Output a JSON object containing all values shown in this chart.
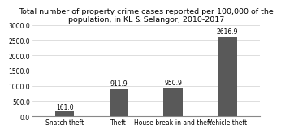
{
  "title": "Total number of property crime cases reported per 100,000 of the\npopulation, in KL & Selangor, 2010-2017",
  "categories": [
    "Snatch theft",
    "Theft",
    "House break-in and theft",
    "Vehicle theft"
  ],
  "values": [
    161.0,
    911.9,
    950.9,
    2616.9
  ],
  "bar_color": "#595959",
  "ylim": [
    0,
    3000
  ],
  "yticks": [
    0.0,
    500.0,
    1000.0,
    1500.0,
    2000.0,
    2500.0,
    3000.0
  ],
  "title_fontsize": 6.8,
  "tick_fontsize": 5.5,
  "label_fontsize": 5.5,
  "background_color": "#ffffff",
  "plot_bg_color": "#ffffff",
  "grid_color": "#d0d0d0",
  "bar_width": 0.35
}
